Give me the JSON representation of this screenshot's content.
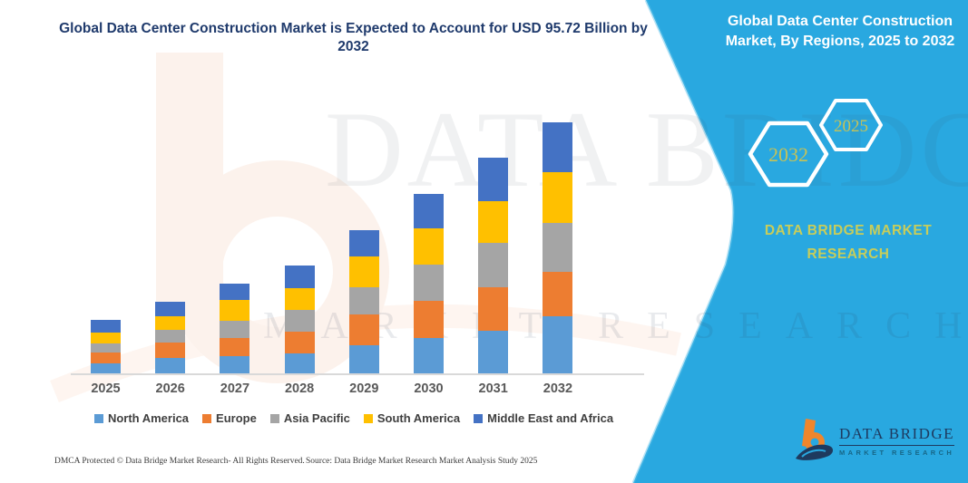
{
  "title": {
    "text": "Global Data Center Construction Market is Expected to Account for USD 95.72 Billion by 2032"
  },
  "right_panel": {
    "heading": "Global Data Center Construction Market, By Regions, 2025 to 2032",
    "hexagons": [
      {
        "label": "2032"
      },
      {
        "label": "2025"
      }
    ],
    "brand_caption": "DATA BRIDGE MARKET RESEARCH",
    "logo": {
      "name": "DATA BRIDGE",
      "sub": "MARKET RESEARCH"
    },
    "accent_color": "#29a8e0",
    "year_text_color": "#c6c257"
  },
  "watermark": {
    "line1": "DATA BRIDGE",
    "line2": "MARKET RESEARCH"
  },
  "footer": {
    "dmca": "DMCA Protected © Data Bridge Market Research-  All Rights Reserved.",
    "source": "Source: Data Bridge Market Research  Market Analysis Study 2025"
  },
  "chart_data": {
    "type": "bar",
    "stacked": true,
    "title": "Global Data Center Construction Market is Expected to Account for USD 95.72 Billion by 2032",
    "unit": "USD Billion",
    "categories": [
      "2025",
      "2026",
      "2027",
      "2028",
      "2029",
      "2030",
      "2031",
      "2032"
    ],
    "series": [
      {
        "name": "North America",
        "color": "#5B9BD5",
        "values": [
          3.8,
          5.9,
          6.6,
          7.6,
          10.7,
          13.5,
          16.2,
          21.8
        ]
      },
      {
        "name": "Europe",
        "color": "#ED7D31",
        "values": [
          4.1,
          5.9,
          6.9,
          8.3,
          11.7,
          14.2,
          16.6,
          16.9
        ]
      },
      {
        "name": "Asia Pacific",
        "color": "#A5A5A5",
        "values": [
          3.5,
          4.8,
          6.6,
          8.3,
          10.4,
          13.8,
          16.9,
          18.7
        ]
      },
      {
        "name": "South America",
        "color": "#FFC000",
        "values": [
          4.1,
          5.2,
          7.9,
          8.3,
          11.7,
          13.8,
          15.9,
          19.4
        ]
      },
      {
        "name": "Middle East and Africa",
        "color": "#4472C4",
        "values": [
          4.8,
          5.5,
          6.2,
          8.6,
          10.0,
          13.1,
          16.6,
          18.92
        ]
      }
    ],
    "totals_estimated": [
      20.3,
      27.3,
      34.2,
      41.1,
      54.5,
      68.4,
      82.2,
      95.72
    ],
    "ylim": [
      0,
      95.72
    ],
    "y_axis_shown": false,
    "value_labels_shown": false,
    "grid": false,
    "legend_position": "bottom"
  }
}
